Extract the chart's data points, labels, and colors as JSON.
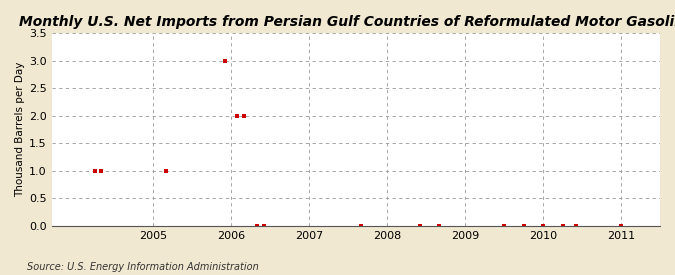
{
  "title": "Monthly U.S. Net Imports from Persian Gulf Countries of Reformulated Motor Gasoline",
  "ylabel": "Thousand Barrels per Day",
  "source": "Source: U.S. Energy Information Administration",
  "background_color": "#f0e8d0",
  "plot_background_color": "#ffffff",
  "x_data": [
    2004.25,
    2004.33,
    2005.17,
    2005.92,
    2006.08,
    2006.17,
    2006.33,
    2006.42,
    2007.67,
    2008.42,
    2008.67,
    2009.5,
    2009.75,
    2010.0,
    2010.25,
    2010.42,
    2011.0
  ],
  "y_data": [
    1.0,
    1.0,
    1.0,
    3.0,
    2.0,
    2.0,
    0.0,
    0.0,
    0.0,
    0.0,
    0.0,
    0.0,
    0.0,
    0.0,
    0.0,
    0.0,
    0.0
  ],
  "marker_color": "#cc0000",
  "marker_size": 3,
  "xlim": [
    2003.7,
    2011.5
  ],
  "ylim": [
    0.0,
    3.5
  ],
  "yticks": [
    0.0,
    0.5,
    1.0,
    1.5,
    2.0,
    2.5,
    3.0,
    3.5
  ],
  "xticks": [
    2005,
    2006,
    2007,
    2008,
    2009,
    2010,
    2011
  ],
  "grid_color": "#999999",
  "grid_linestyle": "--",
  "title_fontsize": 10,
  "label_fontsize": 7.5,
  "tick_fontsize": 8,
  "source_fontsize": 7
}
